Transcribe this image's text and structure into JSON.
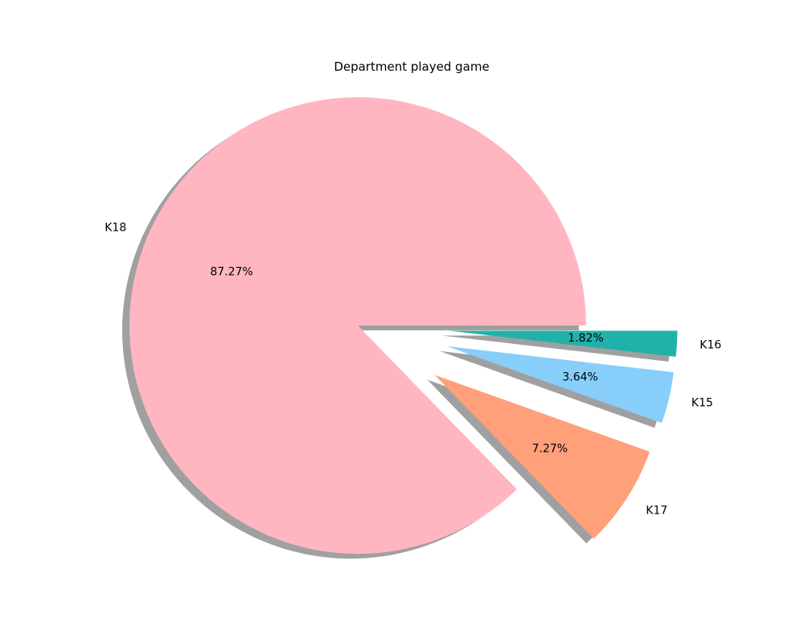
{
  "chart_data": {
    "type": "pie",
    "title": "Department played game",
    "slices": [
      {
        "label": "K18",
        "value": 87.27,
        "pct_label": "87.27%",
        "color": "#ffb6c1",
        "exploded": false
      },
      {
        "label": "K17",
        "value": 7.27,
        "pct_label": "7.27%",
        "color": "#ffa07a",
        "exploded": true
      },
      {
        "label": "K15",
        "value": 3.64,
        "pct_label": "3.64%",
        "color": "#87cefa",
        "exploded": true
      },
      {
        "label": "K16",
        "value": 1.82,
        "pct_label": "1.82%",
        "color": "#20b2aa",
        "exploded": true
      }
    ],
    "start_angle_deg": 0,
    "direction": "counterclockwise",
    "shadow": true,
    "legend": "none",
    "shadow_color": "#808080"
  }
}
